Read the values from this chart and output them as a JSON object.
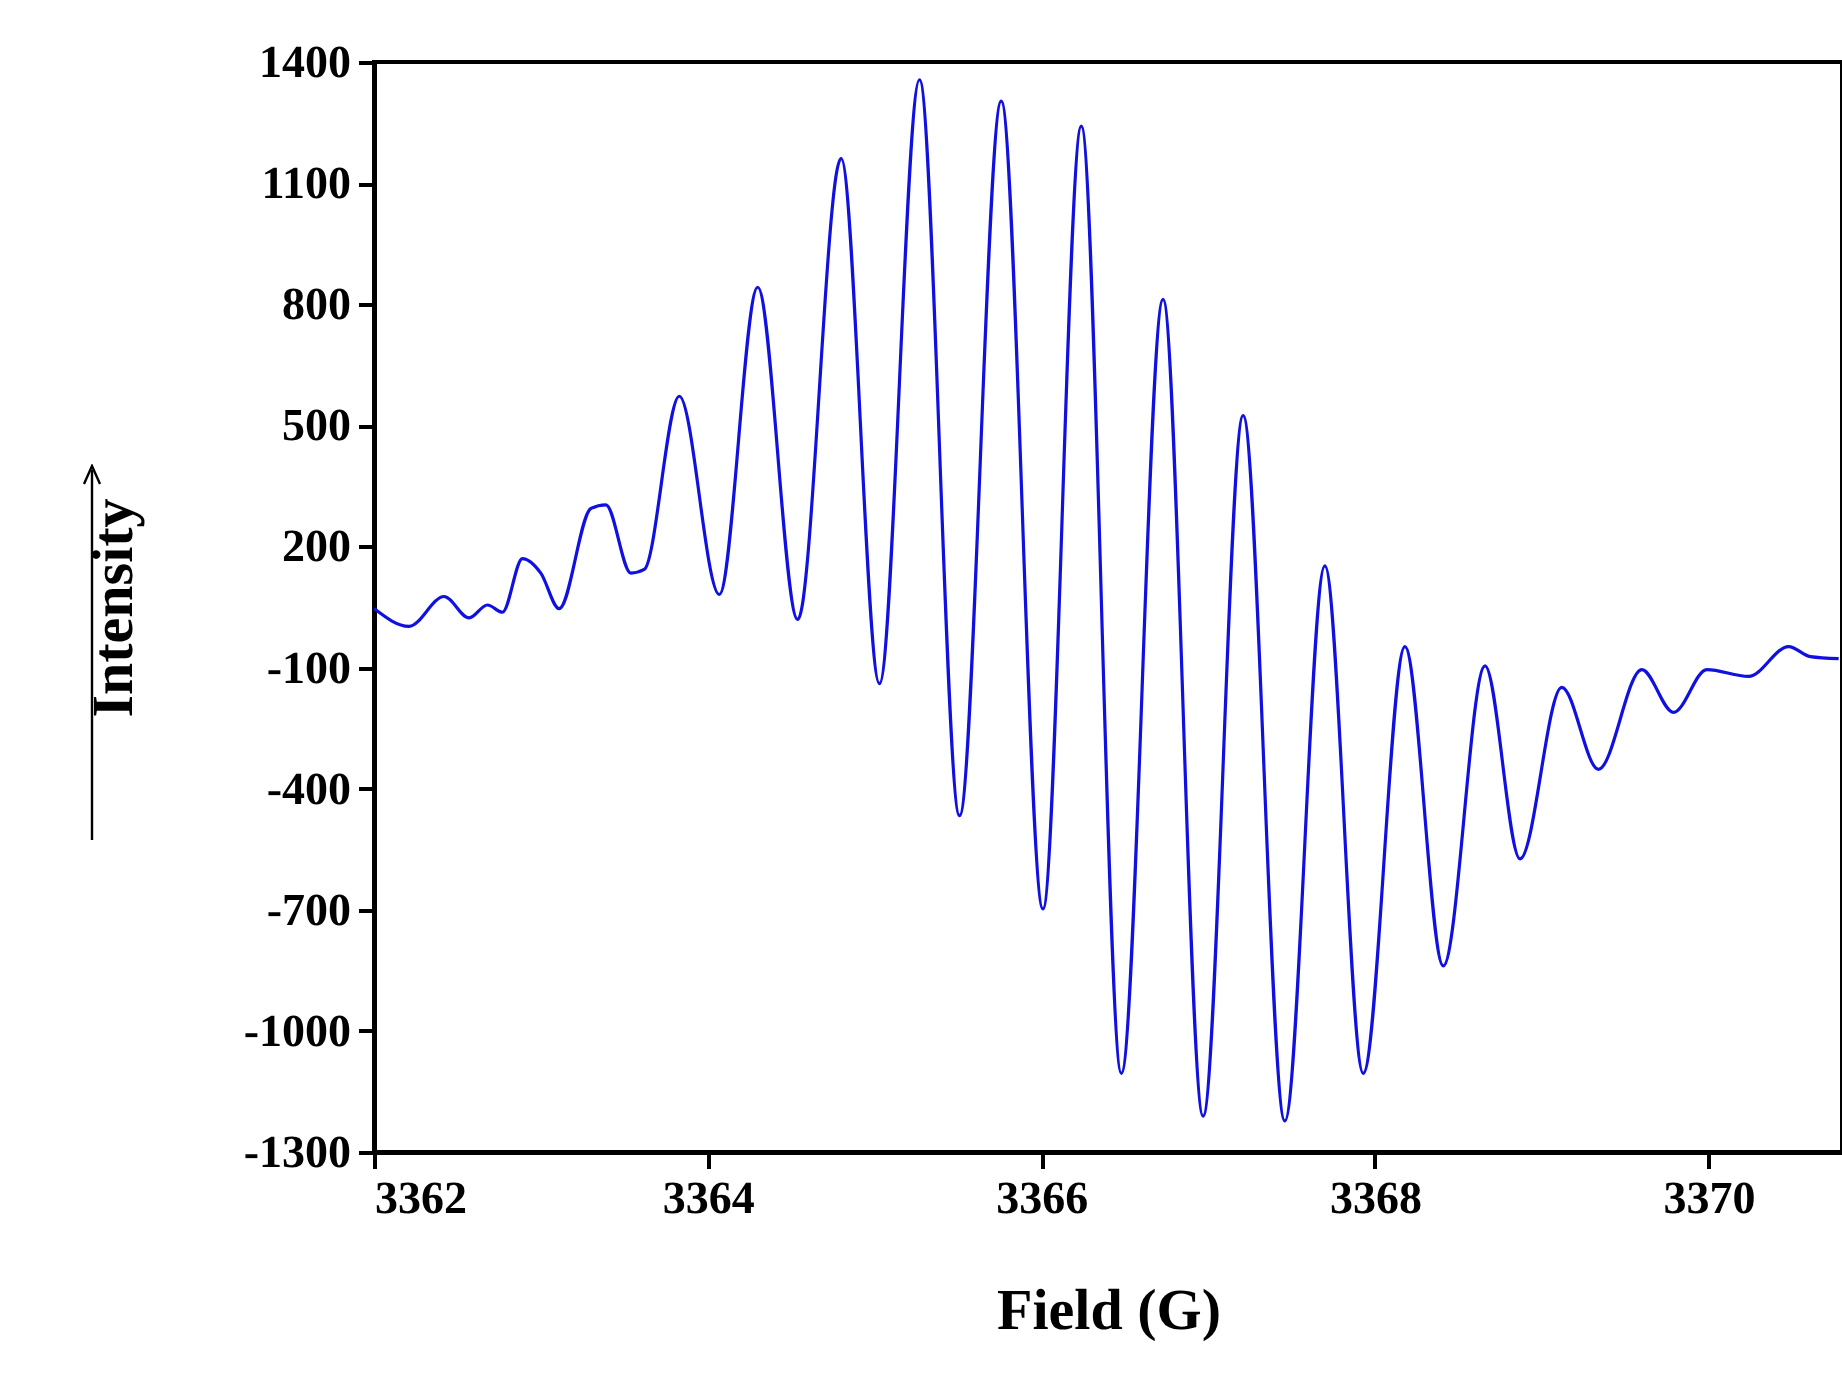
{
  "chart_data": {
    "type": "line",
    "xlabel": "Field (G)",
    "ylabel": "Intensity",
    "xlim": [
      3362,
      3370.8
    ],
    "xticks": [
      3362,
      3364,
      3366,
      3368,
      3370
    ],
    "ylim": [
      -1300,
      1400
    ],
    "yticks": [
      -1300,
      -1000,
      -700,
      -400,
      -100,
      200,
      500,
      800,
      1100,
      1400
    ],
    "grid": false,
    "marker": "none",
    "line_style": "solid",
    "series": [
      {
        "color": "#1010e0",
        "x": [
          3362.0,
          3362.21,
          3362.42,
          3362.57,
          3362.68,
          3362.77,
          3362.89,
          3363.0,
          3363.11,
          3363.3,
          3363.39,
          3363.54,
          3363.62,
          3363.83,
          3364.07,
          3364.3,
          3364.54,
          3364.8,
          3365.03,
          3365.27,
          3365.51,
          3365.76,
          3366.01,
          3366.24,
          3366.48,
          3366.73,
          3366.97,
          3367.21,
          3367.46,
          3367.7,
          3367.93,
          3368.18,
          3368.41,
          3368.66,
          3368.87,
          3369.12,
          3369.34,
          3369.6,
          3369.79,
          3369.99,
          3370.24,
          3370.48,
          3370.61,
          3370.78
        ],
        "values": [
          46,
          2,
          76,
          23,
          55,
          37,
          170,
          134,
          46,
          294,
          303,
          134,
          143,
          572,
          81,
          842,
          19,
          1161,
          -140,
          1356,
          -467,
          1303,
          -698,
          1241,
          -1105,
          812,
          -1211,
          524,
          -1223,
          152,
          -1105,
          -48,
          -839,
          -96,
          -574,
          -149,
          -352,
          -105,
          -211,
          -105,
          -122,
          -48,
          -73,
          -78
        ]
      }
    ]
  }
}
